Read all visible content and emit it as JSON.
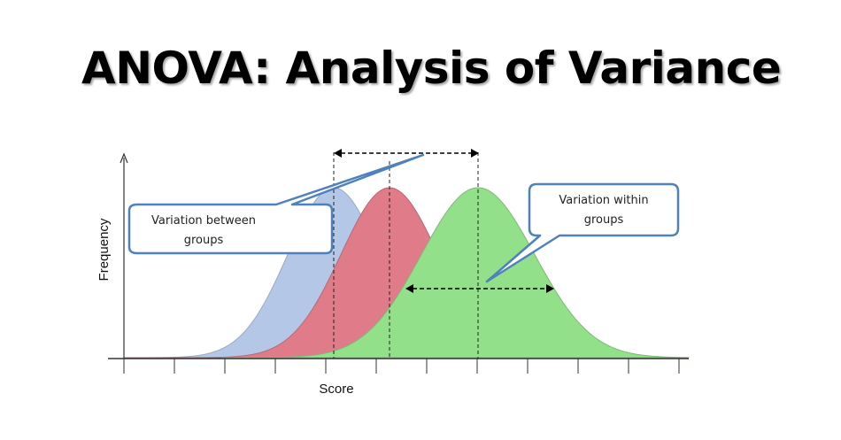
{
  "title": "ANOVA: Analysis of Variance",
  "axes": {
    "x_label": "Score",
    "y_label": "Frequency"
  },
  "callouts": {
    "between": [
      "Variation between",
      "groups"
    ],
    "within": [
      "Variation within",
      "groups"
    ]
  },
  "colors": {
    "group1": "#b4c7e7",
    "group2": "#e07b8a",
    "group3": "#92e08a",
    "callout_border": "#4f81bd"
  }
}
